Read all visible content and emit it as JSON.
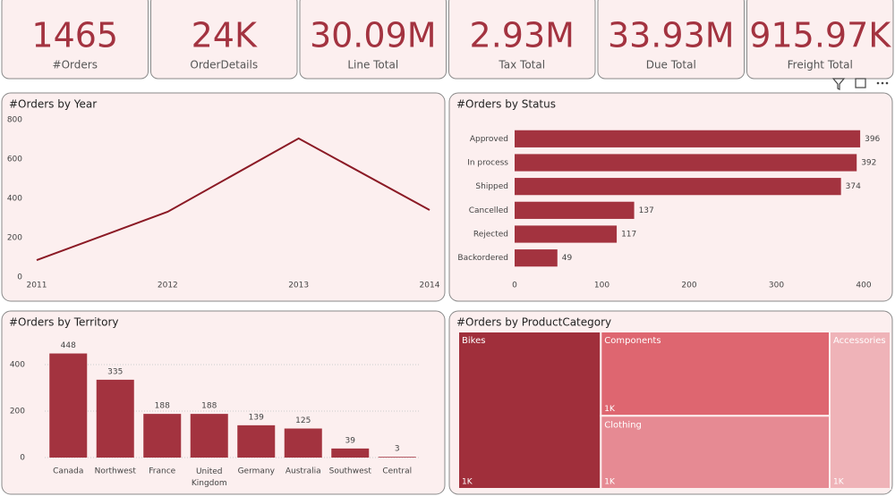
{
  "cards": [
    {
      "value": "1465",
      "label": "#Orders"
    },
    {
      "value": "24K",
      "label": "OrderDetails"
    },
    {
      "value": "30.09M",
      "label": "Line Total"
    },
    {
      "value": "2.93M",
      "label": "Tax Total"
    },
    {
      "value": "33.93M",
      "label": "Due Total"
    },
    {
      "value": "915.97K",
      "label": "Freight Total"
    }
  ],
  "chart_data": [
    {
      "type": "line",
      "title": "#Orders by Year",
      "x": [
        2011,
        2012,
        2013,
        2014
      ],
      "values": [
        86,
        332,
        705,
        341
      ],
      "color": "#8b1a25",
      "xlim": [
        2011,
        2014
      ],
      "xticks": [
        2011,
        2012,
        2013,
        2014
      ],
      "ylim": [
        0,
        800
      ],
      "yticks": [
        0,
        200,
        400,
        600,
        800
      ]
    },
    {
      "type": "hbar",
      "title": "#Orders by Status",
      "categories": [
        "Approved",
        "In process",
        "Shipped",
        "Cancelled",
        "Rejected",
        "Backordered"
      ],
      "values": [
        396,
        392,
        374,
        137,
        117,
        49
      ],
      "color": "#a3333f",
      "xlim": [
        0,
        400
      ],
      "xticks": [
        0,
        100,
        200,
        300,
        400
      ]
    },
    {
      "type": "bar",
      "title": "#Orders by Territory",
      "categories": [
        "Canada",
        "Northwest",
        "France",
        "United Kingdom",
        "Germany",
        "Australia",
        "Southwest",
        "Central"
      ],
      "values": [
        448,
        335,
        188,
        188,
        139,
        125,
        39,
        3
      ],
      "color": "#a3333f",
      "ylim": [
        0,
        500
      ],
      "yticks": [
        0,
        200,
        400
      ],
      "grid": true
    },
    {
      "type": "treemap",
      "title": "#Orders by ProductCategory",
      "categories": [
        "Bikes",
        "Components",
        "Clothing",
        "Accessories"
      ],
      "values": [
        1319,
        1134,
        983,
        563
      ],
      "value_labels": [
        "1K",
        "1K",
        "1K",
        "1K"
      ],
      "colors": [
        "#a02f3b",
        "#de6670",
        "#e68a93",
        "#efb3b8"
      ]
    }
  ]
}
